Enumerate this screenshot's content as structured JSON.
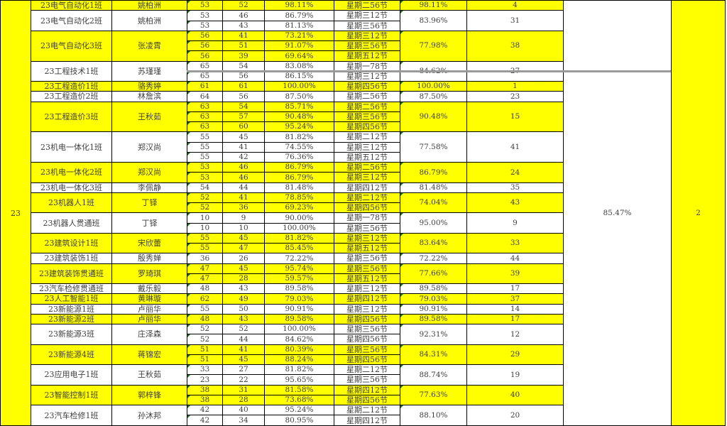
{
  "summary": {
    "year_label": "23",
    "overall_pct": "85.47%",
    "overall_rank": "2"
  },
  "colors": {
    "highlight": "#ffff00",
    "text": "#3f3f3f",
    "grid": "#000000",
    "comment_flag": "#1e6b1e"
  },
  "groups": [
    {
      "class": "23电气自动化1班",
      "teacher": "姚柏洲",
      "highlight": true,
      "avg": "98.11%",
      "rank": "4",
      "sessions": [
        {
          "total": "53",
          "attended": "52",
          "pct": "98.11%",
          "slot": "星期二56节"
        }
      ]
    },
    {
      "class": "23电气自动化2班",
      "teacher": "姚柏洲",
      "highlight": false,
      "avg": "83.96%",
      "rank": "31",
      "sessions": [
        {
          "total": "53",
          "attended": "46",
          "pct": "86.79%",
          "slot": "星期三12节"
        },
        {
          "total": "53",
          "attended": "43",
          "pct": "81.13%",
          "slot": "星期三56节"
        }
      ]
    },
    {
      "class": "23电气自动化3班",
      "teacher": "张凌霄",
      "highlight": true,
      "avg": "77.98%",
      "rank": "38",
      "sessions": [
        {
          "total": "56",
          "attended": "41",
          "pct": "73.21%",
          "slot": "星期三12节"
        },
        {
          "total": "56",
          "attended": "51",
          "pct": "91.07%",
          "slot": "星期三56节"
        },
        {
          "total": "56",
          "attended": "39",
          "pct": "69.64%",
          "slot": "星期五12节"
        }
      ]
    },
    {
      "class": "23工程技术1班",
      "teacher": "苏瑾瑾",
      "highlight": false,
      "avg": "84.62%",
      "rank": "27",
      "sessions": [
        {
          "total": "65",
          "attended": "54",
          "pct": "83.08%",
          "slot": "星期一78节"
        },
        {
          "total": "65",
          "attended": "56",
          "pct": "86.15%",
          "slot": "星期三12节"
        }
      ]
    },
    {
      "class": "23工程造价1班",
      "teacher": "骆秀婷",
      "highlight": true,
      "avg": "100.00%",
      "rank": "1",
      "sessions": [
        {
          "total": "61",
          "attended": "61",
          "pct": "100.00%",
          "slot": "星期四56节"
        }
      ]
    },
    {
      "class": "23工程造价2班",
      "teacher": "林詹滨",
      "highlight": false,
      "avg": "87.50%",
      "rank": "23",
      "sessions": [
        {
          "total": "64",
          "attended": "56",
          "pct": "87.50%",
          "slot": "星期二56节"
        }
      ]
    },
    {
      "class": "23工程造价3班",
      "teacher": "王秋茹",
      "highlight": true,
      "avg": "90.48%",
      "rank": "15",
      "sessions": [
        {
          "total": "63",
          "attended": "54",
          "pct": "85.71%",
          "slot": "星期二56节"
        },
        {
          "total": "63",
          "attended": "57",
          "pct": "90.48%",
          "slot": "星期三56节"
        },
        {
          "total": "63",
          "attended": "60",
          "pct": "95.24%",
          "slot": "星期四56节"
        }
      ]
    },
    {
      "class": "23机电一体化1班",
      "teacher": "郑汉尚",
      "highlight": false,
      "avg": "77.58%",
      "rank": "41",
      "sessions": [
        {
          "total": "55",
          "attended": "45",
          "pct": "81.82%",
          "slot": "星期二12节"
        },
        {
          "total": "55",
          "attended": "41",
          "pct": "74.55%",
          "slot": "星期三12节"
        },
        {
          "total": "55",
          "attended": "42",
          "pct": "76.36%",
          "slot": "星期五12节"
        }
      ]
    },
    {
      "class": "23机电一体化2班",
      "teacher": "郑汉尚",
      "highlight": true,
      "avg": "86.79%",
      "rank": "24",
      "sessions": [
        {
          "total": "53",
          "attended": "46",
          "pct": "86.79%",
          "slot": "星期二56节"
        },
        {
          "total": "53",
          "attended": "46",
          "pct": "86.79%",
          "slot": "星期三12节"
        }
      ]
    },
    {
      "class": "23机电一体化3班",
      "teacher": "李佩静",
      "highlight": false,
      "avg": "81.48%",
      "rank": "35",
      "sessions": [
        {
          "total": "54",
          "attended": "44",
          "pct": "81.48%",
          "slot": "星期四12节"
        }
      ]
    },
    {
      "class": "23机器人1班",
      "teacher": "丁铎",
      "highlight": true,
      "avg": "74.04%",
      "rank": "43",
      "sessions": [
        {
          "total": "52",
          "attended": "41",
          "pct": "78.85%",
          "slot": "星期二12节"
        },
        {
          "total": "52",
          "attended": "36",
          "pct": "69.23%",
          "slot": "星期四56节"
        }
      ]
    },
    {
      "class": "23机器人贯通班",
      "teacher": "丁铎",
      "highlight": false,
      "avg": "95.00%",
      "rank": "9",
      "sessions": [
        {
          "total": "10",
          "attended": "9",
          "pct": "90.00%",
          "slot": "星期一78节"
        },
        {
          "total": "10",
          "attended": "10",
          "pct": "100.00%",
          "slot": "星期三56节"
        }
      ]
    },
    {
      "class": "23建筑设计1班",
      "teacher": "宋欣蕾",
      "highlight": true,
      "avg": "83.64%",
      "rank": "33",
      "sessions": [
        {
          "total": "55",
          "attended": "45",
          "pct": "81.82%",
          "slot": "星期三12节"
        },
        {
          "total": "55",
          "attended": "47",
          "pct": "85.45%",
          "slot": "星期五12节"
        }
      ]
    },
    {
      "class": "23建筑装饰1班",
      "teacher": "殷秀婵",
      "highlight": false,
      "avg": "72.22%",
      "rank": "44",
      "sessions": [
        {
          "total": "36",
          "attended": "26",
          "pct": "72.22%",
          "slot": "星期三56节"
        }
      ]
    },
    {
      "class": "23建筑装饰贯通班",
      "teacher": "罗琦琪",
      "highlight": true,
      "avg": "77.66%",
      "rank": "39",
      "sessions": [
        {
          "total": "47",
          "attended": "45",
          "pct": "95.74%",
          "slot": "星期三56节"
        },
        {
          "total": "47",
          "attended": "28",
          "pct": "59.57%",
          "slot": "星期五12节"
        }
      ]
    },
    {
      "class": "23汽车检修贯通班",
      "teacher": "戴乐毅",
      "highlight": false,
      "avg": "89.58%",
      "rank": "17",
      "sessions": [
        {
          "total": "48",
          "attended": "43",
          "pct": "89.58%",
          "slot": "星期三12节"
        }
      ]
    },
    {
      "class": "23人工智能1班",
      "teacher": "黄琳璇",
      "highlight": true,
      "avg": "79.03%",
      "rank": "37",
      "sessions": [
        {
          "total": "62",
          "attended": "49",
          "pct": "79.03%",
          "slot": "星期四12节"
        }
      ]
    },
    {
      "class": "23新能源1班",
      "teacher": "卢丽华",
      "highlight": false,
      "avg": "90.91%",
      "rank": "14",
      "sessions": [
        {
          "total": "55",
          "attended": "50",
          "pct": "90.91%",
          "slot": "星期三12节"
        }
      ]
    },
    {
      "class": "23新能源2班",
      "teacher": "卢丽华",
      "highlight": true,
      "avg": "89.58%",
      "rank": "17",
      "sessions": [
        {
          "total": "48",
          "attended": "43",
          "pct": "89.58%",
          "slot": "星期四56节"
        }
      ]
    },
    {
      "class": "23新能源3班",
      "teacher": "庄泽森",
      "highlight": false,
      "avg": "92.31%",
      "rank": "12",
      "sessions": [
        {
          "total": "52",
          "attended": "52",
          "pct": "100.00%",
          "slot": "星期三56节"
        },
        {
          "total": "52",
          "attended": "44",
          "pct": "84.62%",
          "slot": "星期四56节"
        }
      ]
    },
    {
      "class": "23新能源4班",
      "teacher": "蒋锦宏",
      "highlight": true,
      "avg": "84.31%",
      "rank": "29",
      "sessions": [
        {
          "total": "51",
          "attended": "41",
          "pct": "80.39%",
          "slot": "星期三56节"
        },
        {
          "total": "51",
          "attended": "45",
          "pct": "88.24%",
          "slot": "星期四56节"
        }
      ]
    },
    {
      "class": "23应用电子1班",
      "teacher": "王秋茹",
      "highlight": false,
      "avg": "88.74%",
      "rank": "19",
      "sessions": [
        {
          "total": "33",
          "attended": "27",
          "pct": "81.82%",
          "slot": "星期二12节"
        },
        {
          "total": "23",
          "attended": "22",
          "pct": "95.65%",
          "slot": "星期三56节"
        }
      ]
    },
    {
      "class": "23智能控制1班",
      "teacher": "郭梓锋",
      "highlight": true,
      "avg": "77.63%",
      "rank": "40",
      "sessions": [
        {
          "total": "38",
          "attended": "31",
          "pct": "81.58%",
          "slot": "星期四12节"
        },
        {
          "total": "38",
          "attended": "28",
          "pct": "73.68%",
          "slot": "星期四56节"
        }
      ]
    },
    {
      "class": "23汽车检修1班",
      "teacher": "孙沐邦",
      "highlight": false,
      "avg": "88.10%",
      "rank": "20",
      "sessions": [
        {
          "total": "42",
          "attended": "40",
          "pct": "95.24%",
          "slot": "星期二12节"
        },
        {
          "total": "42",
          "attended": "34",
          "pct": "80.95%",
          "slot": "星期四12节"
        }
      ]
    }
  ]
}
